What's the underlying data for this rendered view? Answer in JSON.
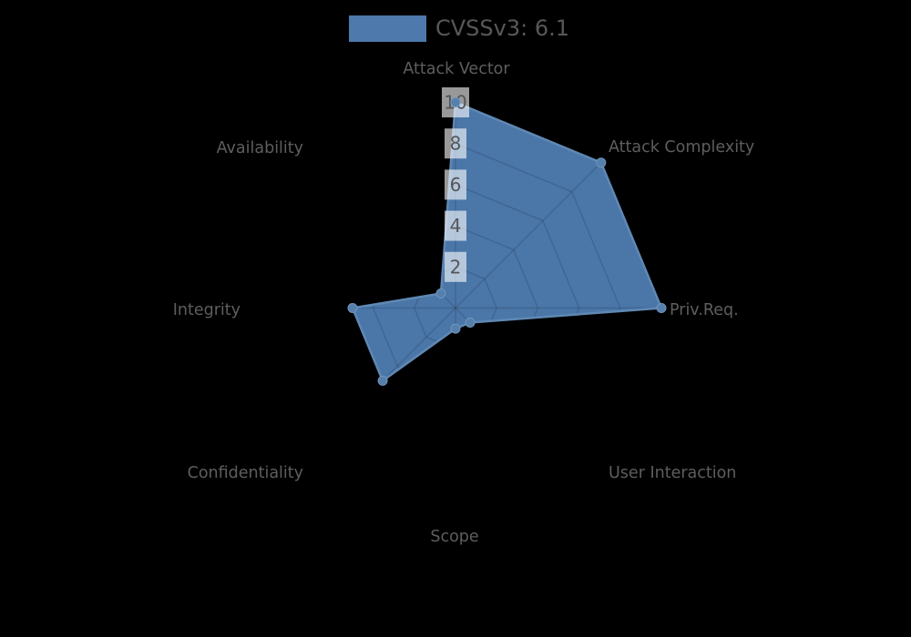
{
  "page": {
    "background": "#000000"
  },
  "legend": {
    "label": "CVSSv3: 6.1",
    "swatch_color": "#4d79ac",
    "text_color": "#58585a"
  },
  "chart_data": {
    "type": "radar",
    "title": "",
    "legend_position": "top",
    "grid": true,
    "axis_range": [
      0,
      10
    ],
    "ticks": [
      2,
      4,
      6,
      8,
      10
    ],
    "categories": [
      "Attack Vector",
      "Attack Complexity",
      "Priv.Req.",
      "User Interaction",
      "Scope",
      "Confidentiality",
      "Integrity",
      "Availability"
    ],
    "series": [
      {
        "name": "CVSSv3: 6.1",
        "values": [
          10,
          10,
          10,
          1,
          1,
          5,
          5,
          1
        ]
      }
    ],
    "colors": {
      "fill": "#4a76a8",
      "outline": "#5f88b4",
      "marker": "#567fac",
      "marker_edge": "#6e96c0",
      "gridline": "rgba(0,0,0,0.13)",
      "tick_box": "rgba(255,255,255,0.6)",
      "tick_text": "#55565a",
      "axis_label": "#5e5e60"
    }
  }
}
